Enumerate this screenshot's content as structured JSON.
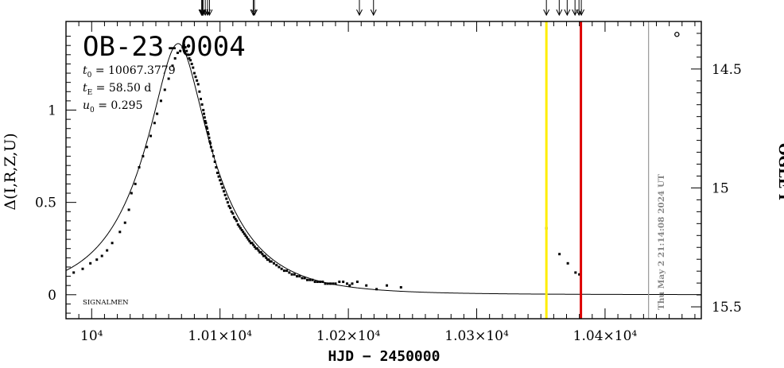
{
  "chart_data": {
    "type": "scatter",
    "title": "OB-23-0004",
    "params": [
      {
        "sym": "t",
        "sub": "0",
        "text": " = 10067.3779"
      },
      {
        "sym": "t",
        "sub": "E",
        "text": " = 58.50  d"
      },
      {
        "sym": "u",
        "sub": "0",
        "text": " = 0.295"
      }
    ],
    "xlabel": "HJD − 2450000",
    "ylabel_left": "Δ(I,R,Z,U)",
    "ylabel_right": "OGLE I",
    "footer_label": "SIGNALMEN",
    "timestamp": "Thu May  2 21:14:08 2024 UT",
    "xlim": [
      9980,
      10475
    ],
    "ylim_left": [
      -0.13,
      1.48
    ],
    "ylim_right": [
      15.55,
      14.3
    ],
    "x_ticks": [
      {
        "value": 10000,
        "label": "10⁴"
      },
      {
        "value": 10100,
        "label": "1.01×10⁴"
      },
      {
        "value": 10200,
        "label": "1.02×10⁴"
      },
      {
        "value": 10300,
        "label": "1.03×10⁴"
      },
      {
        "value": 10400,
        "label": "1.04×10⁴"
      }
    ],
    "y_ticks_left": [
      {
        "value": 0,
        "label": "0"
      },
      {
        "value": 0.5,
        "label": "0.5"
      },
      {
        "value": 1,
        "label": "1"
      }
    ],
    "y_ticks_right": [
      {
        "value": 14.5,
        "label": "14.5"
      },
      {
        "value": 15,
        "label": "15"
      },
      {
        "value": 15.5,
        "label": "15.5"
      }
    ],
    "model": {
      "t0": 10067.3779,
      "tE": 58.5,
      "u0": 0.295
    },
    "vlines": [
      {
        "x": 10354.3,
        "color": "#ffee00"
      },
      {
        "x": 10381.2,
        "color": "#dd0000"
      },
      {
        "x": 10433.9,
        "color": "#999999"
      }
    ],
    "arrows_x": [
      10085.7,
      10086.2,
      10086.8,
      10088.5,
      10090.3,
      10091.8,
      10125.9,
      10126.8,
      10208.6,
      10219.6,
      10354.3,
      10364.3,
      10370.5,
      10376.6,
      10379.7,
      10381.5
    ],
    "points": [
      [
        9986,
        0.12
      ],
      [
        9993,
        0.14
      ],
      [
        9999,
        0.17
      ],
      [
        10004,
        0.19
      ],
      [
        10008,
        0.21
      ],
      [
        10012,
        0.24
      ],
      [
        10016,
        0.28
      ],
      [
        10022,
        0.34
      ],
      [
        10026,
        0.39
      ],
      [
        10029,
        0.46
      ],
      [
        10031,
        0.55
      ],
      [
        10034,
        0.6
      ],
      [
        10037,
        0.69
      ],
      [
        10040,
        0.75
      ],
      [
        10043,
        0.8
      ],
      [
        10046,
        0.86
      ],
      [
        10049,
        0.93
      ],
      [
        10051,
        0.98
      ],
      [
        10054,
        1.05
      ],
      [
        10057,
        1.11
      ],
      [
        10060,
        1.17
      ],
      [
        10063,
        1.24
      ],
      [
        10065,
        1.28
      ],
      [
        10067,
        1.31
      ],
      [
        10069,
        1.32
      ],
      [
        10071,
        1.34
      ],
      [
        10072,
        1.35
      ],
      [
        10073,
        1.34
      ],
      [
        10074,
        1.32
      ],
      [
        10075,
        1.3
      ],
      [
        10076,
        1.28
      ],
      [
        10077,
        1.27
      ],
      [
        10078,
        1.25
      ],
      [
        10079,
        1.23
      ],
      [
        10080,
        1.2
      ],
      [
        10081,
        1.18
      ],
      [
        10082,
        1.16
      ],
      [
        10083,
        1.14
      ],
      [
        10084,
        1.1
      ],
      [
        10085,
        1.06
      ],
      [
        10086,
        1.03
      ],
      [
        10087,
        1.0
      ],
      [
        10087.5,
        0.98
      ],
      [
        10088,
        0.96
      ],
      [
        10088.5,
        0.94
      ],
      [
        10089,
        0.93
      ],
      [
        10089.5,
        0.91
      ],
      [
        10090,
        0.9
      ],
      [
        10090.5,
        0.88
      ],
      [
        10091,
        0.87
      ],
      [
        10091.5,
        0.85
      ],
      [
        10092,
        0.83
      ],
      [
        10092.5,
        0.82
      ],
      [
        10093,
        0.8
      ],
      [
        10094,
        0.78
      ],
      [
        10095,
        0.75
      ],
      [
        10096,
        0.72
      ],
      [
        10097,
        0.69
      ],
      [
        10098,
        0.66
      ],
      [
        10099,
        0.64
      ],
      [
        10100,
        0.62
      ],
      [
        10101,
        0.6
      ],
      [
        10102,
        0.58
      ],
      [
        10103,
        0.56
      ],
      [
        10104,
        0.54
      ],
      [
        10105,
        0.52
      ],
      [
        10106,
        0.5
      ],
      [
        10107,
        0.48
      ],
      [
        10108,
        0.47
      ],
      [
        10109,
        0.45
      ],
      [
        10110,
        0.44
      ],
      [
        10111,
        0.42
      ],
      [
        10112,
        0.41
      ],
      [
        10113,
        0.4
      ],
      [
        10114,
        0.38
      ],
      [
        10115,
        0.37
      ],
      [
        10116,
        0.36
      ],
      [
        10117,
        0.35
      ],
      [
        10118,
        0.34
      ],
      [
        10119,
        0.33
      ],
      [
        10120,
        0.32
      ],
      [
        10121,
        0.31
      ],
      [
        10122,
        0.3
      ],
      [
        10123,
        0.29
      ],
      [
        10124,
        0.28
      ],
      [
        10125,
        0.28
      ],
      [
        10126,
        0.27
      ],
      [
        10127,
        0.26
      ],
      [
        10128,
        0.25
      ],
      [
        10129,
        0.25
      ],
      [
        10130,
        0.24
      ],
      [
        10131,
        0.23
      ],
      [
        10132,
        0.23
      ],
      [
        10133,
        0.22
      ],
      [
        10134,
        0.21
      ],
      [
        10135,
        0.21
      ],
      [
        10136,
        0.2
      ],
      [
        10137,
        0.19
      ],
      [
        10138,
        0.19
      ],
      [
        10139,
        0.18
      ],
      [
        10140,
        0.18
      ],
      [
        10142,
        0.17
      ],
      [
        10144,
        0.16
      ],
      [
        10146,
        0.15
      ],
      [
        10148,
        0.14
      ],
      [
        10150,
        0.13
      ],
      [
        10152,
        0.13
      ],
      [
        10154,
        0.12
      ],
      [
        10156,
        0.11
      ],
      [
        10158,
        0.11
      ],
      [
        10160,
        0.1
      ],
      [
        10162,
        0.1
      ],
      [
        10164,
        0.09
      ],
      [
        10166,
        0.09
      ],
      [
        10168,
        0.08
      ],
      [
        10170,
        0.08
      ],
      [
        10172,
        0.08
      ],
      [
        10174,
        0.07
      ],
      [
        10176,
        0.07
      ],
      [
        10178,
        0.07
      ],
      [
        10180,
        0.07
      ],
      [
        10182,
        0.06
      ],
      [
        10184,
        0.06
      ],
      [
        10186,
        0.06
      ],
      [
        10188,
        0.06
      ],
      [
        10190,
        0.06
      ],
      [
        10193,
        0.07
      ],
      [
        10196,
        0.07
      ],
      [
        10199,
        0.06
      ],
      [
        10201,
        0.05
      ],
      [
        10203,
        0.06
      ],
      [
        10207,
        0.07
      ],
      [
        10214,
        0.05
      ],
      [
        10222,
        0.03
      ],
      [
        10230,
        0.05
      ],
      [
        10241,
        0.04
      ],
      [
        10354.3,
        0.36
      ],
      [
        10364.5,
        0.22
      ],
      [
        10371,
        0.17
      ],
      [
        10377,
        0.12
      ],
      [
        10380,
        0.11
      ],
      [
        10456,
        1.41
      ]
    ]
  }
}
